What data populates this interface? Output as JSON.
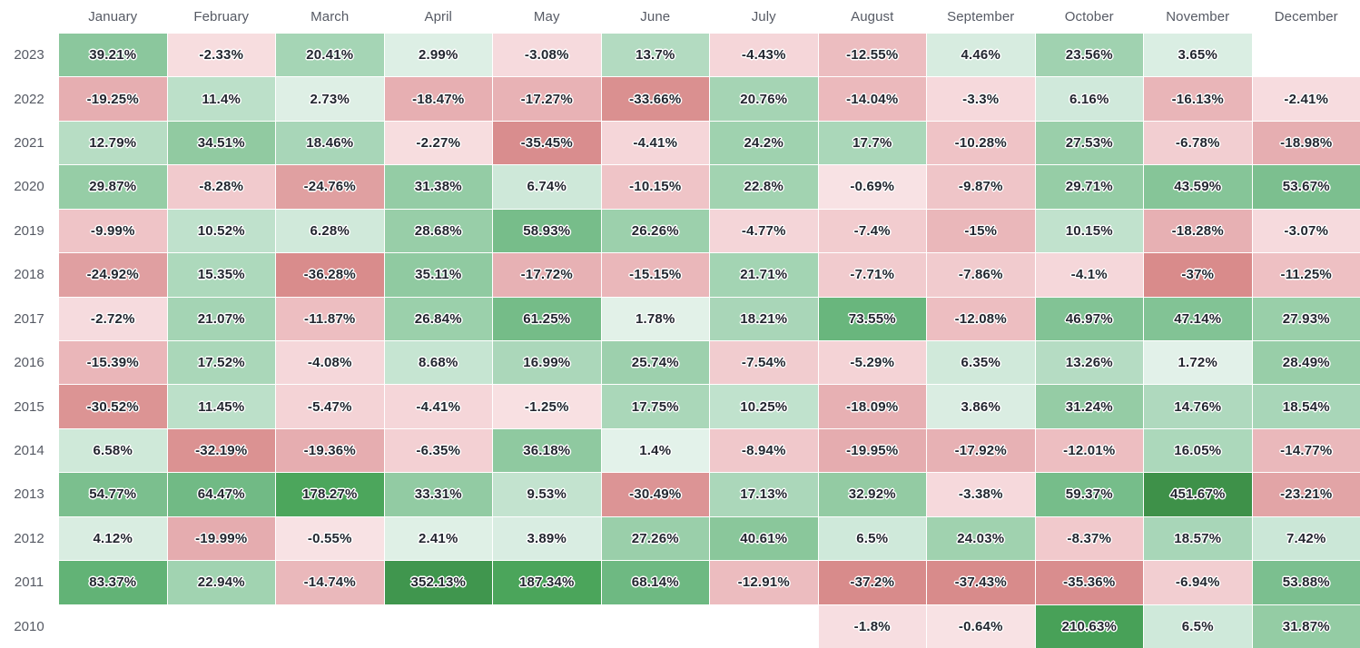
{
  "chart_data": {
    "type": "heatmap",
    "x_axis": "month",
    "y_axis": "year",
    "value_unit": "%",
    "legend_position": "none",
    "grid": "white 1px separators between cells",
    "columns": [
      "January",
      "February",
      "March",
      "April",
      "May",
      "June",
      "July",
      "August",
      "September",
      "October",
      "November",
      "December"
    ],
    "rows": [
      {
        "year": "2023",
        "values": [
          39.21,
          -2.33,
          20.41,
          2.99,
          -3.08,
          13.7,
          -4.43,
          -12.55,
          4.46,
          23.56,
          3.65,
          null
        ]
      },
      {
        "year": "2022",
        "values": [
          -19.25,
          11.4,
          2.73,
          -18.47,
          -17.27,
          -33.66,
          20.76,
          -14.04,
          -3.3,
          6.16,
          -16.13,
          -2.41
        ]
      },
      {
        "year": "2021",
        "values": [
          12.79,
          34.51,
          18.46,
          -2.27,
          -35.45,
          -4.41,
          24.2,
          17.7,
          -10.28,
          27.53,
          -6.78,
          -18.98
        ]
      },
      {
        "year": "2020",
        "values": [
          29.87,
          -8.28,
          -24.76,
          31.38,
          6.74,
          -10.15,
          22.8,
          -0.69,
          -9.87,
          29.71,
          43.59,
          53.67
        ]
      },
      {
        "year": "2019",
        "values": [
          -9.99,
          10.52,
          6.28,
          28.68,
          58.93,
          26.26,
          -4.77,
          -7.4,
          -15,
          10.15,
          -18.28,
          -3.07
        ]
      },
      {
        "year": "2018",
        "values": [
          -24.92,
          15.35,
          -36.28,
          35.11,
          -17.72,
          -15.15,
          21.71,
          -7.71,
          -7.86,
          -4.1,
          -37,
          -11.25
        ]
      },
      {
        "year": "2017",
        "values": [
          -2.72,
          21.07,
          -11.87,
          26.84,
          61.25,
          1.78,
          18.21,
          73.55,
          -12.08,
          46.97,
          47.14,
          27.93
        ]
      },
      {
        "year": "2016",
        "values": [
          -15.39,
          17.52,
          -4.08,
          8.68,
          16.99,
          25.74,
          -7.54,
          -5.29,
          6.35,
          13.26,
          1.72,
          28.49
        ]
      },
      {
        "year": "2015",
        "values": [
          -30.52,
          11.45,
          -5.47,
          -4.41,
          -1.25,
          17.75,
          10.25,
          -18.09,
          3.86,
          31.24,
          14.76,
          18.54
        ]
      },
      {
        "year": "2014",
        "values": [
          6.58,
          -32.19,
          -19.36,
          -6.35,
          36.18,
          1.4,
          -8.94,
          -19.95,
          -17.92,
          -12.01,
          16.05,
          -14.77
        ]
      },
      {
        "year": "2013",
        "values": [
          54.77,
          64.47,
          178.27,
          33.31,
          9.53,
          -30.49,
          17.13,
          32.92,
          -3.38,
          59.37,
          451.67,
          -23.21
        ]
      },
      {
        "year": "2012",
        "values": [
          4.12,
          -19.99,
          -0.55,
          2.41,
          3.89,
          27.26,
          40.61,
          6.5,
          24.03,
          -8.37,
          18.57,
          7.42
        ]
      },
      {
        "year": "2011",
        "values": [
          83.37,
          22.94,
          -14.74,
          352.13,
          187.34,
          68.14,
          -12.91,
          -37.2,
          -37.43,
          -35.36,
          -6.94,
          53.88
        ]
      },
      {
        "year": "2010",
        "values": [
          null,
          null,
          null,
          null,
          null,
          null,
          null,
          -1.8,
          -0.64,
          210.63,
          6.5,
          31.87
        ]
      }
    ],
    "color_scale": {
      "empty": "#ffffff",
      "cell_text": "#22262f",
      "label_text": "#565a64",
      "positive_stops": [
        {
          "v": 0,
          "c": "#e9f4ee"
        },
        {
          "v": 7,
          "c": "#cde8d8"
        },
        {
          "v": 15,
          "c": "#aed9bd"
        },
        {
          "v": 30,
          "c": "#96cda6"
        },
        {
          "v": 50,
          "c": "#7fc192"
        },
        {
          "v": 80,
          "c": "#63b377"
        },
        {
          "v": 180,
          "c": "#4ca65c"
        },
        {
          "v": 250,
          "c": "#429a52"
        },
        {
          "v": 460,
          "c": "#3e9149"
        }
      ],
      "negative_stops": [
        {
          "v": 0,
          "c": "#f9e4e6"
        },
        {
          "v": 5,
          "c": "#f4d4d7"
        },
        {
          "v": 12,
          "c": "#edbec1"
        },
        {
          "v": 20,
          "c": "#e5acaf"
        },
        {
          "v": 28,
          "c": "#dd9798"
        },
        {
          "v": 38,
          "c": "#d88a8a"
        }
      ]
    }
  }
}
